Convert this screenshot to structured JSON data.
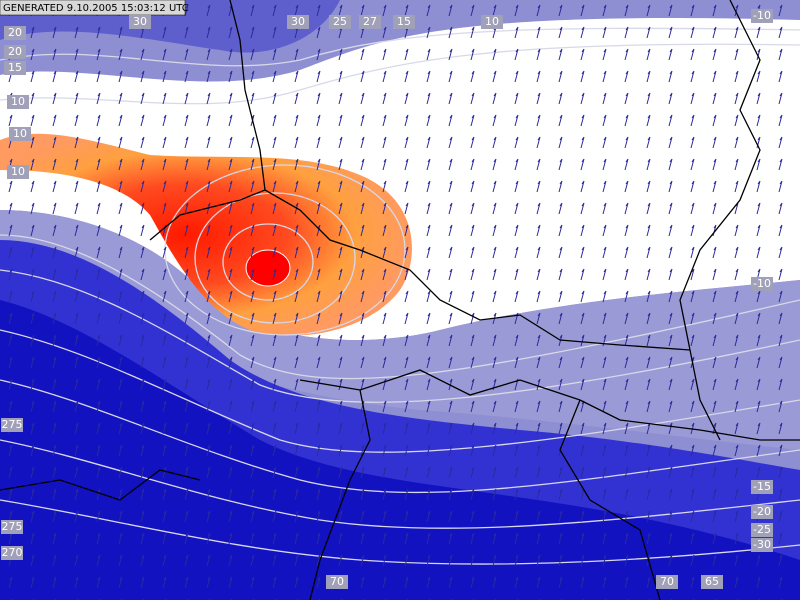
{
  "header": {
    "generated": "GENERATED 9.10.2005 15:03:12 UTC"
  },
  "contour_labels": [
    "20",
    "30",
    "30",
    "25",
    "27",
    "15",
    "10",
    "-10",
    "20",
    "15",
    "10",
    "10",
    "10",
    "-10",
    "275",
    "275",
    "270",
    "70",
    "70",
    "65",
    "-15",
    "-20",
    "-25",
    "-30"
  ]
}
